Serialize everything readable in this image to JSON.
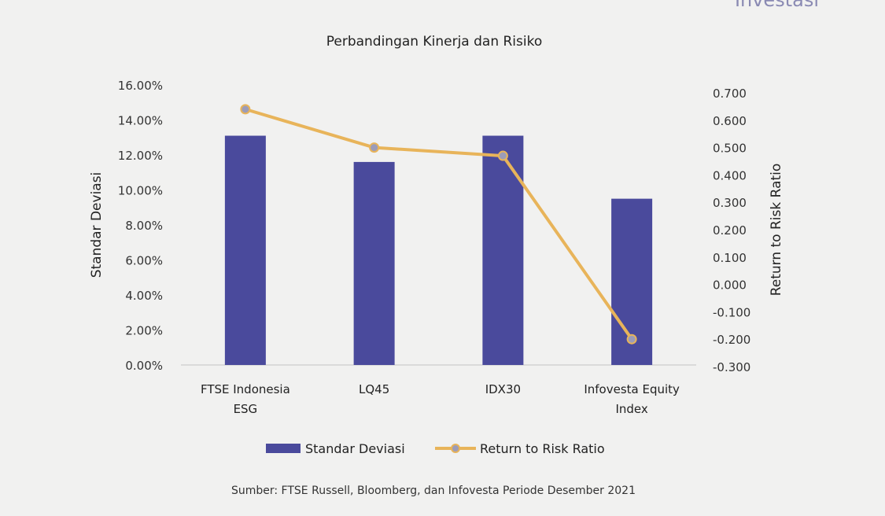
{
  "corner_text": "Investasi",
  "source_note": "Sumber: FTSE Russell, Bloomberg, dan Infovesta Periode Desember 2021",
  "colors": {
    "bar": "#4a4a9c",
    "line": "#e8b45a",
    "marker": "#9c9cb8",
    "axis": "#cccccc"
  },
  "chart_data": {
    "type": "bar",
    "title": "Perbandingan Kinerja dan Risiko",
    "categories": [
      [
        "FTSE Indonesia",
        "ESG"
      ],
      [
        "LQ45"
      ],
      [
        "IDX30"
      ],
      [
        "Infovesta Equity",
        "Index"
      ]
    ],
    "ylabel_left": "Standar Deviasi",
    "ylabel_right": "Return to Risk Ratio",
    "ylim_left": [
      0,
      0.16
    ],
    "ylim_right": [
      -0.3,
      0.7
    ],
    "left_ticks": [
      "0.00%",
      "2.00%",
      "4.00%",
      "6.00%",
      "8.00%",
      "10.00%",
      "12.00%",
      "14.00%",
      "16.00%"
    ],
    "right_ticks": [
      "-0.300",
      "-0.200",
      "-0.100",
      "0.000",
      "0.100",
      "0.200",
      "0.300",
      "0.400",
      "0.500",
      "0.600",
      "0.700"
    ],
    "series": [
      {
        "name": "Standar Deviasi",
        "type": "bar",
        "axis": "left",
        "values": [
          0.131,
          0.116,
          0.131,
          0.095
        ]
      },
      {
        "name": "Return to Risk Ratio",
        "type": "line",
        "axis": "right",
        "values": [
          0.64,
          0.5,
          0.47,
          -0.2
        ]
      }
    ],
    "legend": "bottom",
    "grid": false
  }
}
